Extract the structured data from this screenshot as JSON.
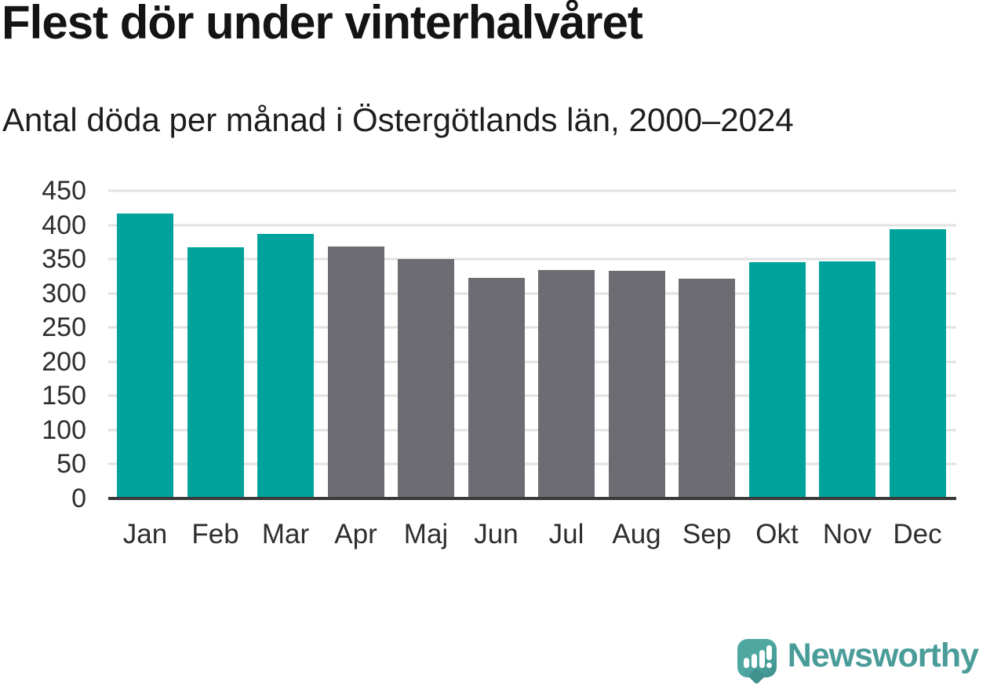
{
  "header": {
    "title": "Flest dör under vinterhalvåret",
    "subtitle": "Antal döda per månad i Östergötlands län, 2000–2024"
  },
  "chart_data": {
    "type": "bar",
    "title": "Flest dör under vinterhalvåret",
    "subtitle": "Antal döda per månad i Östergötlands län, 2000–2024",
    "categories": [
      "Jan",
      "Feb",
      "Mar",
      "Apr",
      "Maj",
      "Jun",
      "Jul",
      "Aug",
      "Sep",
      "Okt",
      "Nov",
      "Dec"
    ],
    "values": [
      417,
      367,
      387,
      368,
      350,
      323,
      334,
      333,
      322,
      346,
      347,
      394
    ],
    "bar_color_keys": [
      "winter",
      "winter",
      "winter",
      "summer",
      "summer",
      "summer",
      "summer",
      "summer",
      "summer",
      "winter",
      "winter",
      "winter"
    ],
    "xlabel": "",
    "ylabel": "",
    "ylim": [
      0,
      450
    ],
    "yticks": [
      0,
      50,
      100,
      150,
      200,
      250,
      300,
      350,
      400,
      450
    ],
    "grid": true,
    "legend": "none"
  },
  "colors": {
    "winter_bar": "#00A39C",
    "summer_bar": "#6C6C72",
    "gridline": "#E2E2E2",
    "axis": "#3A3A3A",
    "tick_label": "#2E2E2E",
    "title_text": "#141414",
    "subtitle_text": "#1E1E1E",
    "brand_teal": "#4A9C99",
    "logo_bubble": "#4EA7A1",
    "logo_bubble_shade": "#3E918C"
  },
  "footer": {
    "brand_name": "Newsworthy",
    "logo_icon": "speech-bubble-bar-chart-exclamation-icon"
  }
}
